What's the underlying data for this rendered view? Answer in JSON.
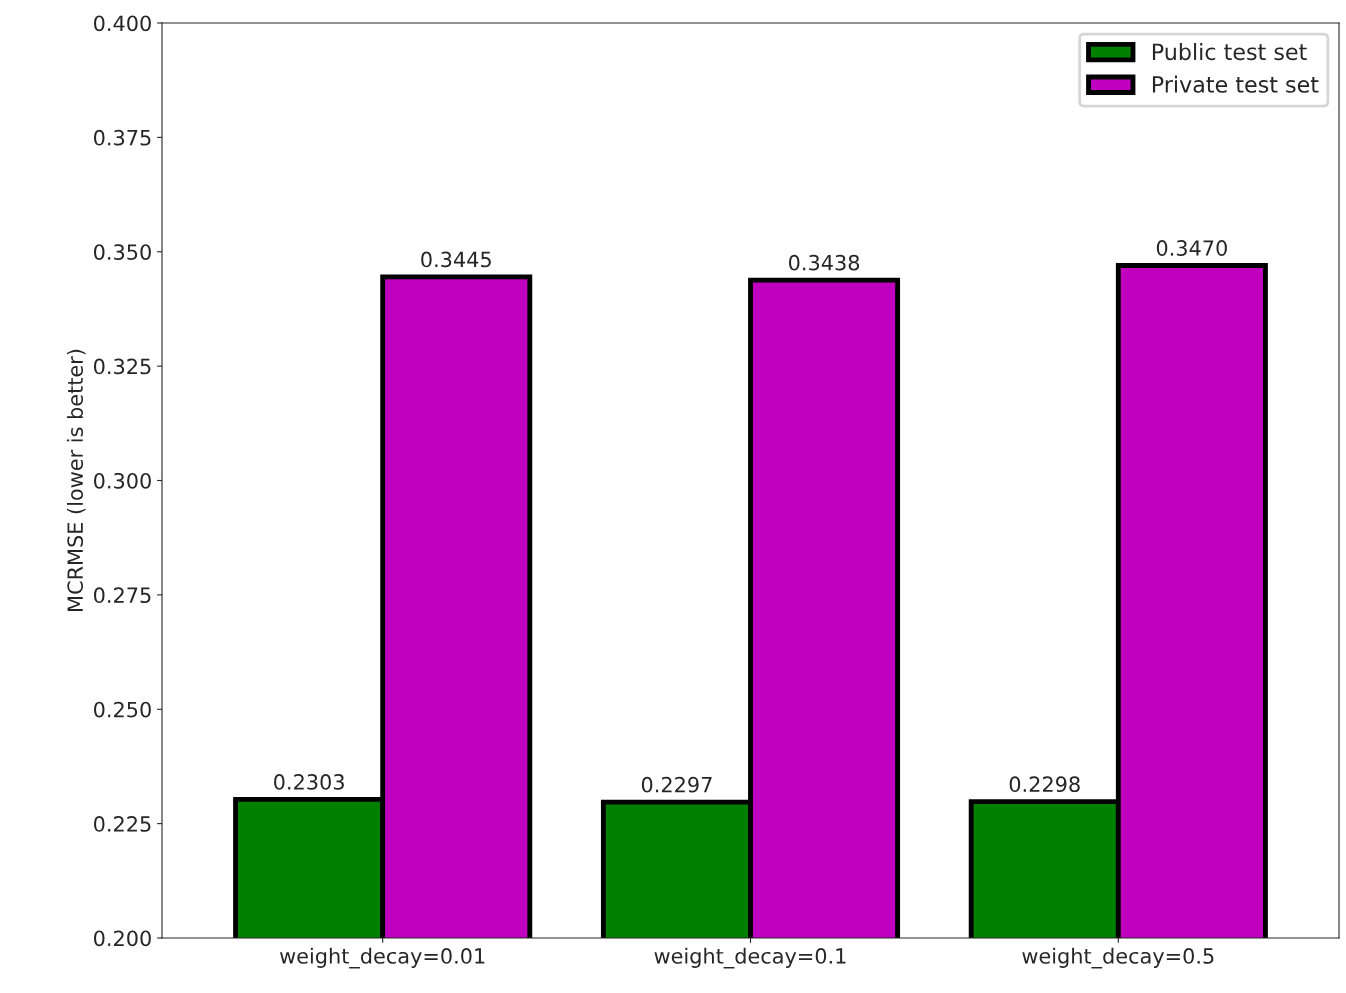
{
  "chart_data": {
    "type": "bar",
    "ylabel": "MCRMSE (lower is better)",
    "categories": [
      "weight_decay=0.01",
      "weight_decay=0.1",
      "weight_decay=0.5"
    ],
    "series": [
      {
        "name": "Public test set",
        "color": "#008000",
        "values": [
          0.2303,
          0.2297,
          0.2298
        ],
        "value_labels": [
          "0.2303",
          "0.2297",
          "0.2298"
        ]
      },
      {
        "name": "Private test set",
        "color": "#bf00bf",
        "values": [
          0.3445,
          0.3438,
          0.347
        ],
        "value_labels": [
          "0.3445",
          "0.3438",
          "0.3470"
        ]
      }
    ],
    "ylim": [
      0.2,
      0.4
    ],
    "yticks": [
      {
        "value": 0.2,
        "label": "0.200"
      },
      {
        "value": 0.225,
        "label": "0.225"
      },
      {
        "value": 0.25,
        "label": "0.250"
      },
      {
        "value": 0.275,
        "label": "0.275"
      },
      {
        "value": 0.3,
        "label": "0.300"
      },
      {
        "value": 0.325,
        "label": "0.325"
      },
      {
        "value": 0.35,
        "label": "0.350"
      },
      {
        "value": 0.375,
        "label": "0.375"
      },
      {
        "value": 0.4,
        "label": "0.400"
      }
    ],
    "grid": false,
    "legend": "top right"
  }
}
